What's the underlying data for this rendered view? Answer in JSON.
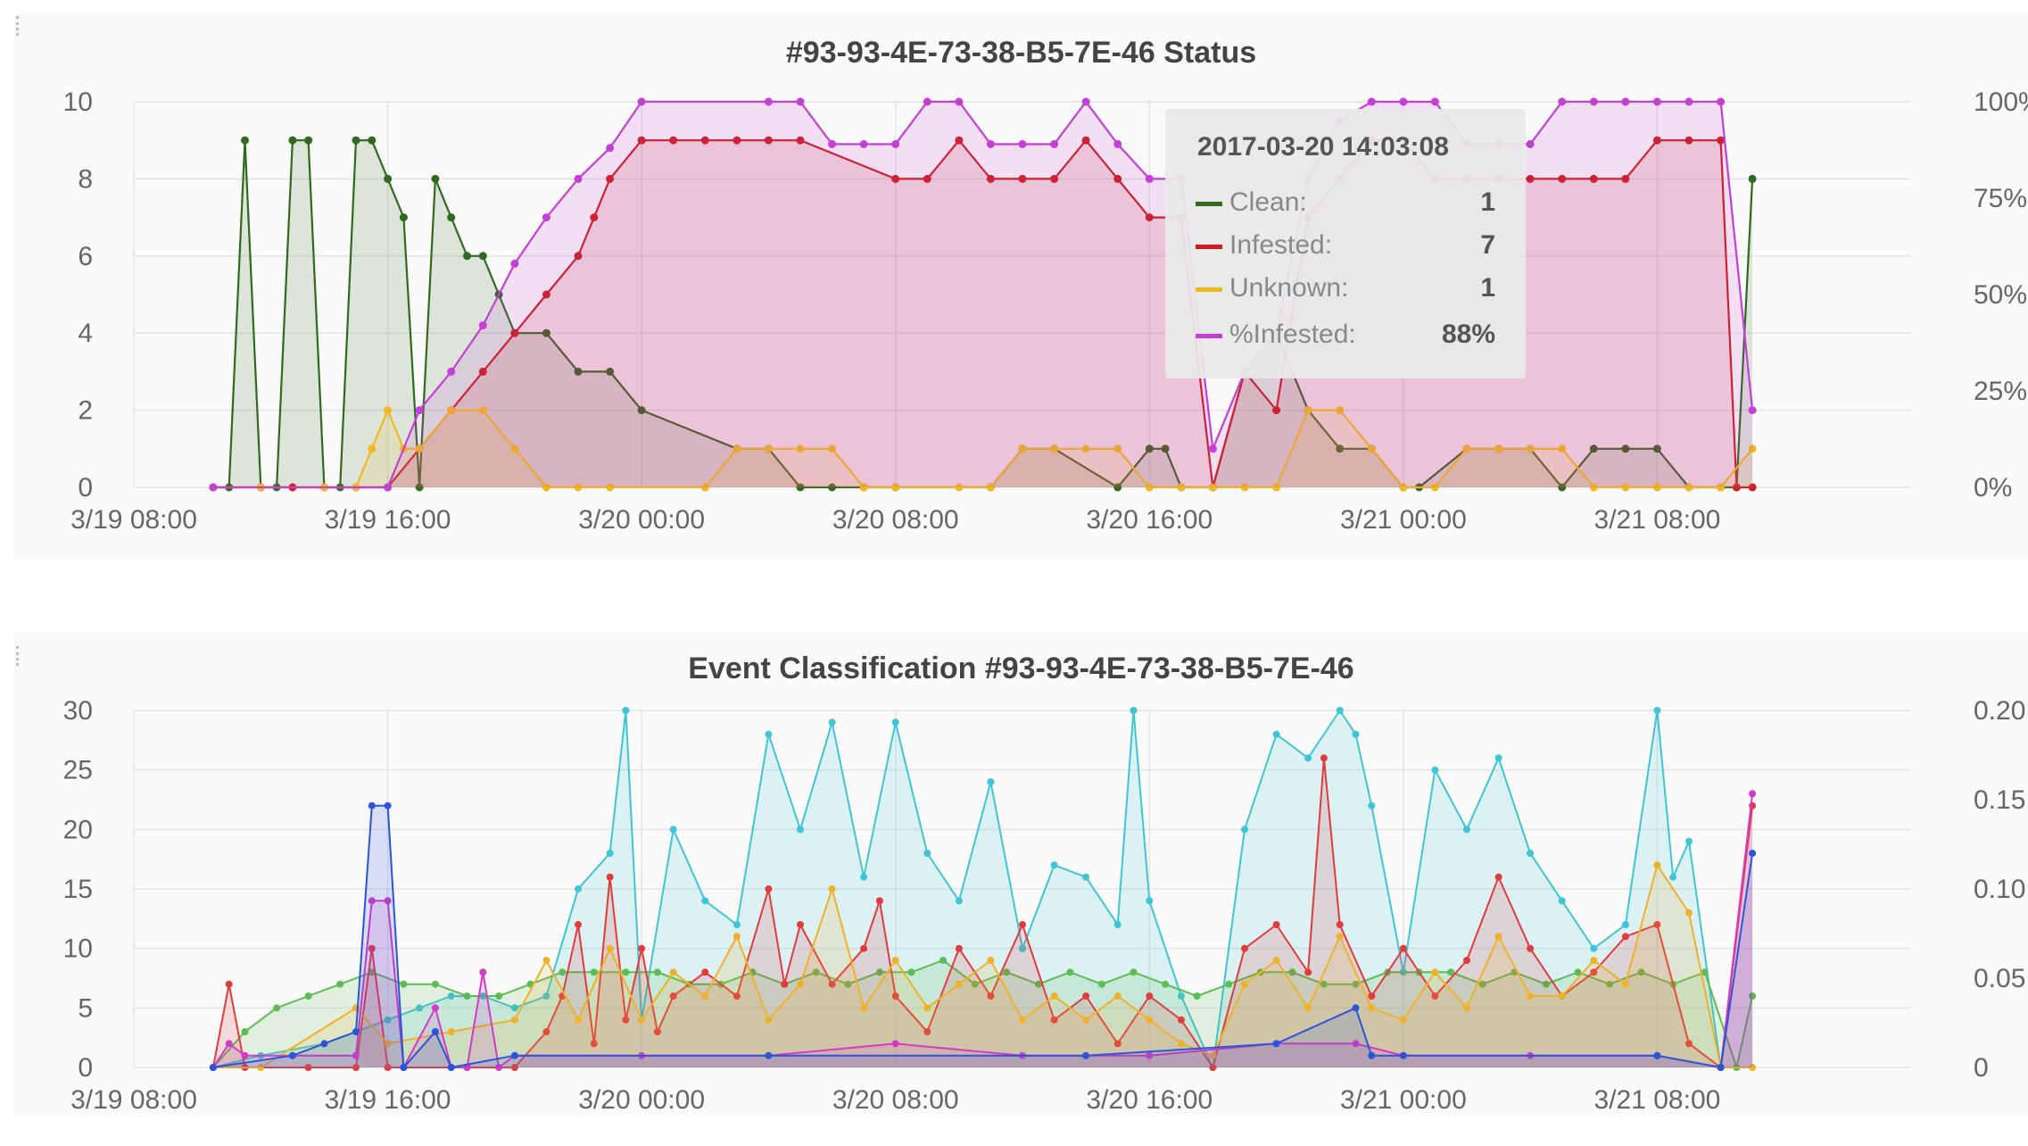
{
  "colors": {
    "clean": "#2f6a1e",
    "infested": "#d01c1c",
    "unknown": "#f2b71e",
    "pct_infested": "#c53ed6",
    "ev_cyan": "#3fc4d8",
    "ev_red": "#e23b3b",
    "ev_yellow": "#f0b12a",
    "ev_green": "#5bbd52",
    "ev_blue": "#2a55d9",
    "ev_magenta": "#d53ac6"
  },
  "status_panel": {
    "title": "#93-93-4E-73-38-B5-7E-46 Status",
    "tooltip": {
      "time": "2017-03-20 14:03:08",
      "rows": [
        {
          "label": "Clean:",
          "value": "1"
        },
        {
          "label": "Infested:",
          "value": "7"
        },
        {
          "label": "Unknown:",
          "value": "1"
        },
        {
          "label": "%Infested:",
          "value": "88%"
        }
      ]
    }
  },
  "event_panel": {
    "title": "Event Classification #93-93-4E-73-38-B5-7E-46"
  },
  "chart_data": [
    {
      "type": "line",
      "title": "#93-93-4E-73-38-B5-7E-46 Status",
      "x_unit": "hours since 3/19 08:00",
      "x_tick_labels": [
        "3/19 08:00",
        "3/19 16:00",
        "3/20 00:00",
        "3/20 08:00",
        "3/20 16:00",
        "3/21 00:00",
        "3/21 08:00"
      ],
      "x_ticks": [
        0,
        8,
        16,
        24,
        32,
        40,
        48
      ],
      "xlim": [
        0,
        56
      ],
      "ylim": [
        0,
        10
      ],
      "y_ticks": [
        "0",
        "2",
        "4",
        "6",
        "8",
        "10"
      ],
      "y2_ticks": [
        "0%",
        "25%",
        "50%",
        "75%",
        "100%"
      ],
      "y2lim": [
        0,
        100
      ],
      "grid": true,
      "series": [
        {
          "name": "Clean",
          "color_key": "clean",
          "x": [
            2.5,
            3.0,
            3.5,
            4.0,
            4.5,
            5.0,
            5.5,
            6.0,
            6.5,
            7.0,
            7.5,
            8.0,
            8.5,
            9.0,
            9.5,
            10.0,
            10.5,
            11.0,
            11.5,
            12.0,
            13.0,
            14.0,
            15.0,
            16.0,
            19.0,
            20.0,
            21.0,
            22.0,
            23.0,
            24.0,
            27.0,
            28.0,
            29.0,
            31.0,
            32.0,
            32.5,
            33.0,
            34.0,
            35.0,
            36.0,
            37.0,
            38.0,
            39.0,
            40.0,
            40.5,
            42.0,
            43.0,
            44.0,
            45.0,
            46.0,
            47.0,
            48.0,
            49.0,
            50.0,
            50.5,
            51.0
          ],
          "y": [
            0,
            0,
            9,
            0,
            0,
            9,
            9,
            0,
            0,
            9,
            9,
            8,
            7,
            0,
            8,
            7,
            6,
            6,
            5,
            4,
            4,
            3,
            3,
            2,
            1,
            1,
            0,
            0,
            0,
            0,
            0,
            1,
            1,
            0,
            1,
            1,
            0,
            0,
            3,
            4,
            2,
            1,
            1,
            0,
            0,
            1,
            1,
            1,
            0,
            1,
            1,
            1,
            0,
            0,
            0,
            8
          ]
        },
        {
          "name": "Infested",
          "color_key": "infested",
          "x": [
            2.5,
            4.0,
            5.0,
            6.0,
            7.0,
            8.0,
            9.0,
            10.0,
            11.0,
            12.0,
            13.0,
            14.0,
            14.5,
            15.0,
            16.0,
            17.0,
            18.0,
            19.0,
            20.0,
            21.0,
            24.0,
            25.0,
            26.0,
            27.0,
            28.0,
            29.0,
            30.0,
            31.0,
            32.0,
            33.0,
            34.0,
            35.0,
            36.0,
            37.0,
            38.0,
            39.0,
            40.0,
            41.0,
            42.0,
            43.0,
            44.0,
            45.0,
            46.0,
            47.0,
            48.0,
            49.0,
            50.0,
            50.5,
            51.0
          ],
          "y": [
            0,
            0,
            0,
            0,
            0,
            0,
            1,
            2,
            3,
            4,
            5,
            6,
            7,
            8,
            9,
            9,
            9,
            9,
            9,
            9,
            8,
            8,
            9,
            8,
            8,
            8,
            9,
            8,
            7,
            7,
            0,
            3,
            2,
            7,
            8,
            9,
            9,
            8,
            8,
            8,
            8,
            8,
            8,
            8,
            9,
            9,
            9,
            0,
            0
          ]
        },
        {
          "name": "Unknown",
          "color_key": "unknown",
          "x": [
            2.5,
            4.0,
            6.0,
            7.0,
            7.5,
            8.0,
            8.5,
            9.0,
            10.0,
            11.0,
            12.0,
            13.0,
            14.0,
            15.0,
            18.0,
            19.0,
            20.0,
            21.0,
            22.0,
            23.0,
            24.0,
            26.0,
            27.0,
            28.0,
            29.0,
            30.0,
            31.0,
            32.0,
            33.0,
            34.0,
            35.0,
            36.0,
            37.0,
            38.0,
            39.0,
            40.0,
            41.0,
            42.0,
            43.0,
            44.0,
            45.0,
            46.0,
            47.0,
            48.0,
            49.0,
            50.0,
            51.0
          ],
          "y": [
            0,
            0,
            0,
            0,
            1,
            2,
            1,
            1,
            2,
            2,
            1,
            0,
            0,
            0,
            0,
            1,
            1,
            1,
            1,
            0,
            0,
            0,
            0,
            1,
            1,
            1,
            1,
            0,
            0,
            0,
            0,
            0,
            2,
            2,
            1,
            0,
            0,
            1,
            1,
            1,
            1,
            0,
            0,
            0,
            0,
            0,
            1
          ]
        },
        {
          "name": "%Infested",
          "color_key": "pct_infested",
          "axis": "right",
          "x": [
            2.5,
            8.0,
            9.0,
            10.0,
            11.0,
            12.0,
            13.0,
            14.0,
            15.0,
            16.0,
            20.0,
            21.0,
            22.0,
            23.0,
            24.0,
            25.0,
            26.0,
            27.0,
            28.0,
            29.0,
            30.0,
            31.0,
            32.0,
            33.0,
            34.0,
            35.0,
            36.0,
            37.0,
            38.0,
            39.0,
            40.0,
            41.0,
            42.0,
            43.0,
            44.0,
            45.0,
            46.0,
            47.0,
            48.0,
            49.0,
            50.0,
            51.0
          ],
          "y": [
            0,
            0,
            20,
            30,
            42,
            58,
            70,
            80,
            88,
            100,
            100,
            100,
            89,
            89,
            89,
            100,
            100,
            89,
            89,
            89,
            100,
            89,
            80,
            80,
            10,
            30,
            40,
            80,
            95,
            100,
            100,
            100,
            89,
            89,
            89,
            100,
            100,
            100,
            100,
            100,
            100,
            20
          ]
        }
      ]
    },
    {
      "type": "area",
      "title": "Event Classification #93-93-4E-73-38-B5-7E-46",
      "x_unit": "hours since 3/19 08:00",
      "x_tick_labels": [
        "3/19 08:00",
        "3/19 16:00",
        "3/20 00:00",
        "3/20 08:00",
        "3/20 16:00",
        "3/21 00:00",
        "3/21 08:00"
      ],
      "x_ticks": [
        0,
        8,
        16,
        24,
        32,
        40,
        48
      ],
      "xlim": [
        0,
        56
      ],
      "ylim": [
        0,
        30
      ],
      "y_ticks": [
        "0",
        "5",
        "10",
        "15",
        "20",
        "25",
        "30"
      ],
      "y2_ticks": [
        "0",
        "0.05",
        "0.10",
        "0.15",
        "0.20"
      ],
      "y2lim": [
        0,
        0.2
      ],
      "grid": true,
      "series": [
        {
          "color_key": "ev_cyan",
          "x": [
            2.5,
            4,
            6,
            8,
            9,
            10,
            11,
            12,
            13,
            14,
            15,
            15.5,
            16,
            17,
            18,
            19,
            20,
            21,
            22,
            23,
            24,
            25,
            26,
            27,
            28,
            29,
            30,
            31,
            31.5,
            32,
            33,
            34,
            35,
            36,
            37,
            38,
            38.5,
            39,
            40,
            41,
            42,
            43,
            44,
            45,
            46,
            47,
            48,
            48.5,
            49,
            50,
            51
          ],
          "y": [
            0,
            1,
            2,
            4,
            5,
            6,
            6,
            5,
            6,
            15,
            18,
            30,
            4,
            20,
            14,
            12,
            28,
            20,
            29,
            16,
            29,
            18,
            14,
            24,
            10,
            17,
            16,
            12,
            30,
            14,
            6,
            0,
            20,
            28,
            26,
            30,
            28,
            22,
            8,
            25,
            20,
            26,
            18,
            14,
            10,
            12,
            30,
            16,
            19,
            0,
            0
          ]
        },
        {
          "color_key": "ev_green",
          "x": [
            2.5,
            3.5,
            4.5,
            5.5,
            6.5,
            7.5,
            8.5,
            9.5,
            10.5,
            11.5,
            12.5,
            13.5,
            14.5,
            15.5,
            16.5,
            17.5,
            18.5,
            19.5,
            20.5,
            21.5,
            22.5,
            23.5,
            24.5,
            25.5,
            26.5,
            27.5,
            28.5,
            29.5,
            30.5,
            31.5,
            32.5,
            33.5,
            34.5,
            35.5,
            36.5,
            37.5,
            38.5,
            39.5,
            40.5,
            41.5,
            42.5,
            43.5,
            44.5,
            45.5,
            46.5,
            47.5,
            48.5,
            49.5,
            50.5,
            51
          ],
          "y": [
            0,
            3,
            5,
            6,
            7,
            8,
            7,
            7,
            6,
            6,
            7,
            8,
            8,
            8,
            8,
            7,
            7,
            8,
            7,
            8,
            7,
            8,
            8,
            9,
            7,
            8,
            7,
            8,
            7,
            8,
            7,
            6,
            7,
            8,
            8,
            7,
            7,
            8,
            8,
            8,
            7,
            8,
            7,
            8,
            7,
            8,
            7,
            8,
            0,
            6
          ]
        },
        {
          "color_key": "ev_red",
          "x": [
            2.5,
            3.0,
            3.5,
            5.5,
            7.0,
            7.5,
            8.0,
            8.5,
            10.5,
            12.0,
            13.0,
            13.5,
            14.0,
            14.5,
            15.0,
            15.5,
            16.0,
            16.5,
            17.0,
            18.0,
            19.0,
            20.0,
            20.5,
            21.0,
            22.0,
            23.0,
            23.5,
            24.0,
            25.0,
            26.0,
            27.0,
            28.0,
            29.0,
            30.0,
            31.0,
            32.0,
            33.0,
            34.0,
            35.0,
            36.0,
            37.0,
            37.5,
            38.0,
            39.0,
            40.0,
            41.0,
            42.0,
            43.0,
            44.0,
            45.0,
            46.0,
            47.0,
            48.0,
            49.0,
            50.0,
            51.0
          ],
          "y": [
            0,
            7,
            0,
            0,
            0,
            10,
            0,
            0,
            0,
            0,
            3,
            6,
            12,
            2,
            16,
            4,
            10,
            3,
            6,
            8,
            6,
            15,
            7,
            12,
            7,
            10,
            14,
            6,
            3,
            10,
            6,
            12,
            4,
            6,
            2,
            6,
            4,
            0,
            10,
            12,
            8,
            26,
            12,
            6,
            10,
            6,
            9,
            16,
            10,
            6,
            8,
            11,
            12,
            2,
            0,
            22
          ]
        },
        {
          "color_key": "ev_yellow",
          "x": [
            2.5,
            4.0,
            7.0,
            8.0,
            10.0,
            12.0,
            13.0,
            14.0,
            15.0,
            16.0,
            17.0,
            18.0,
            19.0,
            20.0,
            21.0,
            22.0,
            23.0,
            24.0,
            25.0,
            26.0,
            27.0,
            28.0,
            29.0,
            30.0,
            31.0,
            32.0,
            33.0,
            34.0,
            35.0,
            36.0,
            37.0,
            38.0,
            39.0,
            40.0,
            41.0,
            42.0,
            43.0,
            44.0,
            45.0,
            46.0,
            47.0,
            48.0,
            49.0,
            50.0,
            51.0
          ],
          "y": [
            0,
            0,
            5,
            2,
            3,
            4,
            9,
            4,
            10,
            4,
            8,
            6,
            11,
            4,
            7,
            15,
            5,
            9,
            5,
            7,
            9,
            4,
            6,
            4,
            6,
            4,
            2,
            1,
            7,
            9,
            5,
            11,
            5,
            4,
            8,
            5,
            11,
            6,
            6,
            9,
            7,
            17,
            13,
            0,
            0
          ]
        },
        {
          "color_key": "ev_magenta",
          "x": [
            2.5,
            3.0,
            3.5,
            5.0,
            7.0,
            7.5,
            8.0,
            8.5,
            9.5,
            10.0,
            10.5,
            11.0,
            11.5,
            12.0,
            16.0,
            20.0,
            24.0,
            28.0,
            32.0,
            36.0,
            38.5,
            40.0,
            44.0,
            48.0,
            50.0,
            51.0
          ],
          "y": [
            0,
            2,
            1,
            1,
            1,
            14,
            14,
            0,
            5,
            0,
            0,
            8,
            0,
            1,
            1,
            1,
            2,
            1,
            1,
            2,
            2,
            1,
            1,
            1,
            0,
            23
          ]
        },
        {
          "color_key": "ev_blue",
          "x": [
            2.5,
            5.0,
            6.0,
            7.0,
            7.5,
            8.0,
            8.5,
            9.5,
            10.0,
            12.0,
            20.0,
            30.0,
            36.0,
            38.5,
            39.0,
            40.0,
            48.0,
            50.0,
            51.0
          ],
          "y": [
            0,
            1,
            2,
            3,
            22,
            22,
            0,
            3,
            0,
            1,
            1,
            1,
            2,
            5,
            1,
            1,
            1,
            0,
            18
          ]
        }
      ]
    }
  ]
}
